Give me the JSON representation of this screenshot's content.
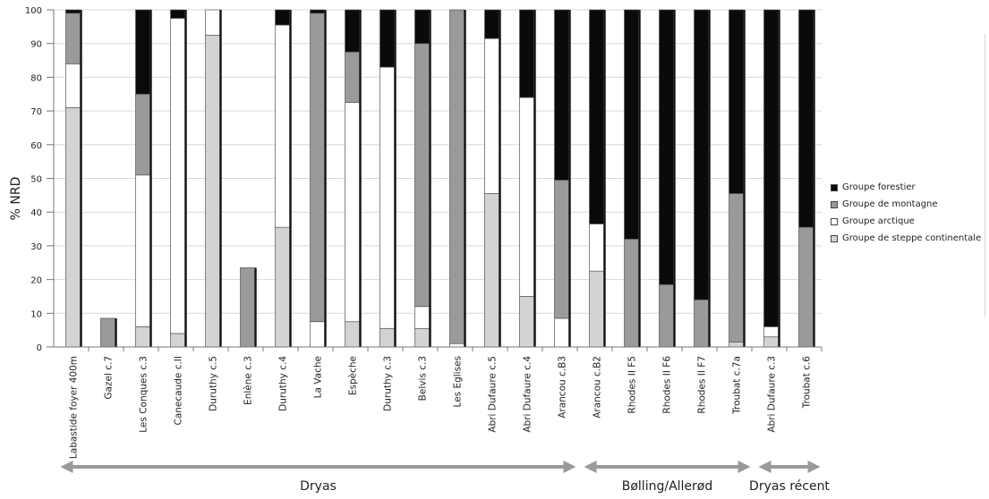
{
  "chart_data": {
    "type": "bar",
    "stacked": true,
    "ylabel": "% NRD",
    "ylim": [
      0,
      100
    ],
    "yticks": [
      0,
      10,
      20,
      30,
      40,
      50,
      60,
      70,
      80,
      90,
      100
    ],
    "grid": "horizontal",
    "categories": [
      "Labastide foyer 400m",
      "Gazel c.7",
      "Les Conques c.3",
      "Canecaude c.II",
      "Duruthy c.5",
      "Enlène c.3",
      "Duruthy c.4",
      "La Vache",
      "Espèche",
      "Duruthy c.3",
      "Belvis c.3",
      "Les Eglises",
      "Abri Dufaure c.5",
      "Abri Dufaure c.4",
      "Arancou c.B3",
      "Arancou c.B2",
      "Rhodes II F5",
      "Rhodes II F6",
      "Rhodes II F7",
      "Troubat c.7a",
      "Abri Dufaure c.3",
      "Troubat c.6"
    ],
    "series": [
      {
        "name": "Groupe de steppe continentale",
        "color": "#d3d3d3",
        "values": [
          71,
          0,
          6,
          4,
          92.5,
          0,
          35.5,
          0,
          7.5,
          5.5,
          5.5,
          0,
          45.5,
          15,
          0,
          22.5,
          0,
          0,
          0,
          1.5,
          3,
          0
        ]
      },
      {
        "name": "Groupe arctique",
        "color": "#ffffff",
        "values": [
          13,
          0,
          45,
          93.5,
          7.5,
          0,
          60,
          7.5,
          65,
          77.5,
          6.5,
          1,
          46,
          59,
          8.5,
          14,
          0,
          0,
          0,
          0,
          3,
          0
        ]
      },
      {
        "name": "Groupe de montagne",
        "color": "#9a9a9a",
        "values": [
          15,
          8.5,
          24,
          0,
          0,
          23.5,
          0,
          91.5,
          15,
          0,
          78,
          99,
          0,
          0,
          41,
          0,
          32,
          18.5,
          14,
          44,
          0,
          35.5
        ]
      },
      {
        "name": "Groupe forestier",
        "color": "#0a0a0a",
        "values": [
          1,
          0,
          25,
          2.5,
          0,
          0,
          4.5,
          1,
          12.5,
          17,
          10,
          0,
          8.5,
          26,
          50.5,
          63.5,
          68,
          81.5,
          86,
          54.5,
          94,
          64.5
        ]
      }
    ],
    "legend": "right",
    "periods": [
      {
        "label": "Dryas",
        "from": 0,
        "to": 14
      },
      {
        "label": "Bølling/Allerød",
        "from": 15,
        "to": 19
      },
      {
        "label": "Dryas récent",
        "from": 20,
        "to": 21
      }
    ]
  },
  "legend_order": [
    3,
    2,
    1,
    0
  ]
}
